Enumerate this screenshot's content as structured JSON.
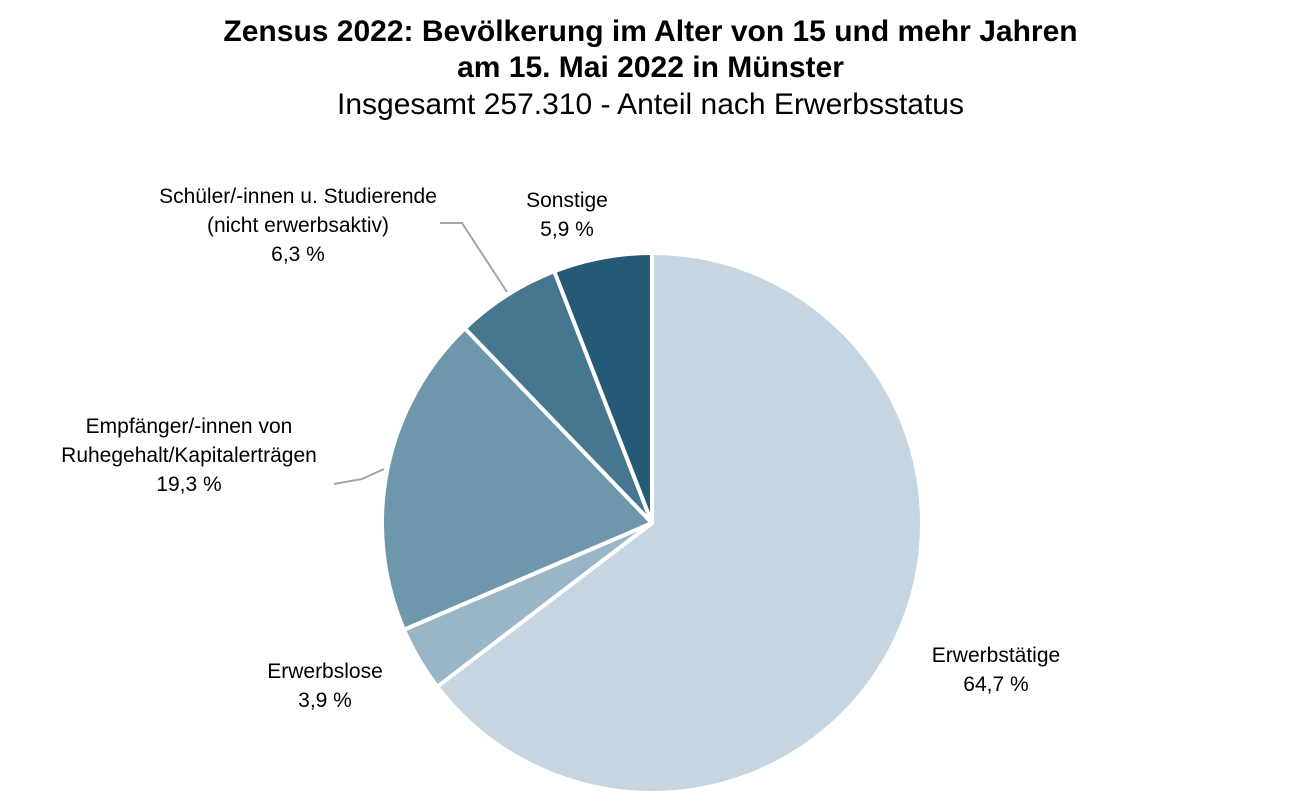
{
  "title": {
    "line1": "Zensus 2022: Bevölkerung im Alter von 15 und mehr Jahren",
    "line2": "am 15. Mai 2022 in Münster",
    "subtitle": "Insgesamt 257.310 - Anteil nach Erwerbsstatus"
  },
  "chart_data": {
    "type": "pie",
    "title": "Zensus 2022: Bevölkerung im Alter von 15 und mehr Jahren am 15. Mai 2022 in Münster",
    "subtitle": "Insgesamt 257.310 - Anteil nach Erwerbsstatus",
    "total": 257310,
    "start_angle_deg": 0,
    "direction": "clockwise",
    "legend": "none",
    "slices": [
      {
        "label_lines": [
          "Erwerbstätige"
        ],
        "value": 64.7,
        "value_label": "64,7 %",
        "color": "#c5d5e1"
      },
      {
        "label_lines": [
          "Erwerbslose"
        ],
        "value": 3.9,
        "value_label": "3,9 %",
        "color": "#9ab5c5"
      },
      {
        "label_lines": [
          "Empfänger/-innen von",
          "Ruhegehalt/Kapitalerträgen"
        ],
        "value": 19.3,
        "value_label": "19,3 %",
        "color": "#6f97ab"
      },
      {
        "label_lines": [
          "Schüler/-innen u. Studierende",
          "(nicht erwerbsaktiv)"
        ],
        "value": 6.3,
        "value_label": "6,3 %",
        "color": "#457890"
      },
      {
        "label_lines": [
          "Sonstige"
        ],
        "value": 5.9,
        "value_label": "5,9 %",
        "color": "#245a76"
      }
    ]
  }
}
